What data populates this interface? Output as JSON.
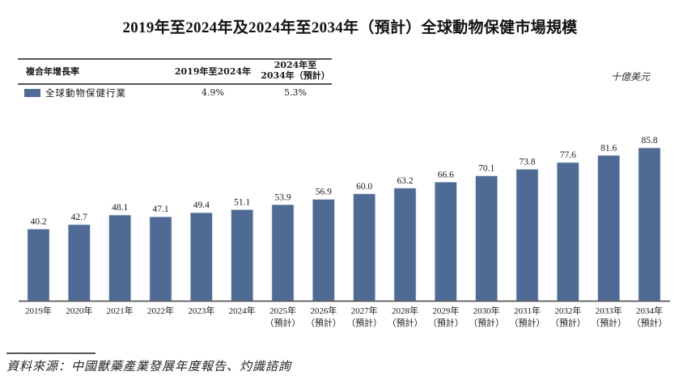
{
  "title": "2019年至2024年及2024年至2034年（預計）全球動物保健市場規模",
  "cagr_table": {
    "header_label": "複合年增長率",
    "col1_header": "2019年至2024年",
    "col2_header_line1": "2024年至",
    "col2_header_line2": "2034年（預計）",
    "row_label": "全球動物保健行業",
    "col1_value": "4.9%",
    "col2_value": "5.3%"
  },
  "unit": "十億美元",
  "source": "資料來源：中國獸藥產業發展年度報告、灼識諮詢",
  "colors": {
    "bar": "#4f6a94",
    "axis": "#444444"
  },
  "chart_data": {
    "type": "bar",
    "title": "2019年至2024年及2024年至2034年（預計）全球動物保健市場規模",
    "xlabel": "",
    "ylabel": "十億美元",
    "ylim": [
      0,
      85.8
    ],
    "grid": false,
    "legend": "top-left",
    "series": [
      {
        "name": "全球動物保健行業",
        "values": [
          40.2,
          42.7,
          48.1,
          47.1,
          49.4,
          51.1,
          53.9,
          56.9,
          60.0,
          63.2,
          66.6,
          70.1,
          73.8,
          77.6,
          81.6,
          85.8
        ],
        "labels": [
          "40.2",
          "42.7",
          "48.1",
          "47.1",
          "49.4",
          "51.1",
          "53.9",
          "56.9",
          "60.0",
          "63.2",
          "66.6",
          "70.1",
          "73.8",
          "77.6",
          "81.6",
          "85.8"
        ]
      }
    ],
    "categories": [
      {
        "year": "2019年",
        "note": ""
      },
      {
        "year": "2020年",
        "note": ""
      },
      {
        "year": "2021年",
        "note": ""
      },
      {
        "year": "2022年",
        "note": ""
      },
      {
        "year": "2023年",
        "note": ""
      },
      {
        "year": "2024年",
        "note": ""
      },
      {
        "year": "2025年",
        "note": "（預計）"
      },
      {
        "year": "2026年",
        "note": "（預計）"
      },
      {
        "year": "2027年",
        "note": "（預計）"
      },
      {
        "year": "2028年",
        "note": "（預計）"
      },
      {
        "year": "2029年",
        "note": "（預計）"
      },
      {
        "year": "2030年",
        "note": "（預計）"
      },
      {
        "year": "2031年",
        "note": "（預計）"
      },
      {
        "year": "2032年",
        "note": "（預計）"
      },
      {
        "year": "2033年",
        "note": "（預計）"
      },
      {
        "year": "2034年",
        "note": "（預計）"
      }
    ]
  }
}
